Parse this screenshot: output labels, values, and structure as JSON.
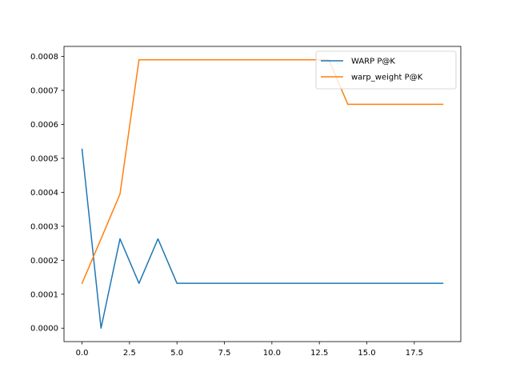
{
  "chart_data": {
    "type": "line",
    "title": "",
    "xlabel": "",
    "ylabel": "",
    "xlim": [
      -0.95,
      19.95
    ],
    "ylim": [
      -3.95e-05,
      0.0008295
    ],
    "x_ticks": [
      0.0,
      2.5,
      5.0,
      7.5,
      10.0,
      12.5,
      15.0,
      17.5
    ],
    "x_tick_labels": [
      "0.0",
      "2.5",
      "5.0",
      "7.5",
      "10.0",
      "12.5",
      "15.0",
      "17.5"
    ],
    "y_ticks": [
      0.0,
      0.0001,
      0.0002,
      0.0003,
      0.0004,
      0.0005,
      0.0006,
      0.0007,
      0.0008
    ],
    "y_tick_labels": [
      "0.0000",
      "0.0001",
      "0.0002",
      "0.0003",
      "0.0004",
      "0.0005",
      "0.0006",
      "0.0007",
      "0.0008"
    ],
    "grid": false,
    "legend_position": "top-right",
    "x": [
      0,
      1,
      2,
      3,
      4,
      5,
      6,
      7,
      8,
      9,
      10,
      11,
      12,
      13,
      14,
      15,
      16,
      17,
      18,
      19
    ],
    "series": [
      {
        "name": "WARP P@K",
        "color": "#1f77b4",
        "values": [
          0.000527,
          0.0,
          0.000263,
          0.000132,
          0.000263,
          0.000132,
          0.000132,
          0.000132,
          0.000132,
          0.000132,
          0.000132,
          0.000132,
          0.000132,
          0.000132,
          0.000132,
          0.000132,
          0.000132,
          0.000132,
          0.000132,
          0.000132
        ]
      },
      {
        "name": "warp_weight P@K",
        "color": "#ff7f0e",
        "values": [
          0.000132,
          0.000263,
          0.000395,
          0.00079,
          0.00079,
          0.00079,
          0.00079,
          0.00079,
          0.00079,
          0.00079,
          0.00079,
          0.00079,
          0.00079,
          0.00079,
          0.000659,
          0.000659,
          0.000659,
          0.000659,
          0.000659,
          0.000659
        ]
      }
    ]
  }
}
